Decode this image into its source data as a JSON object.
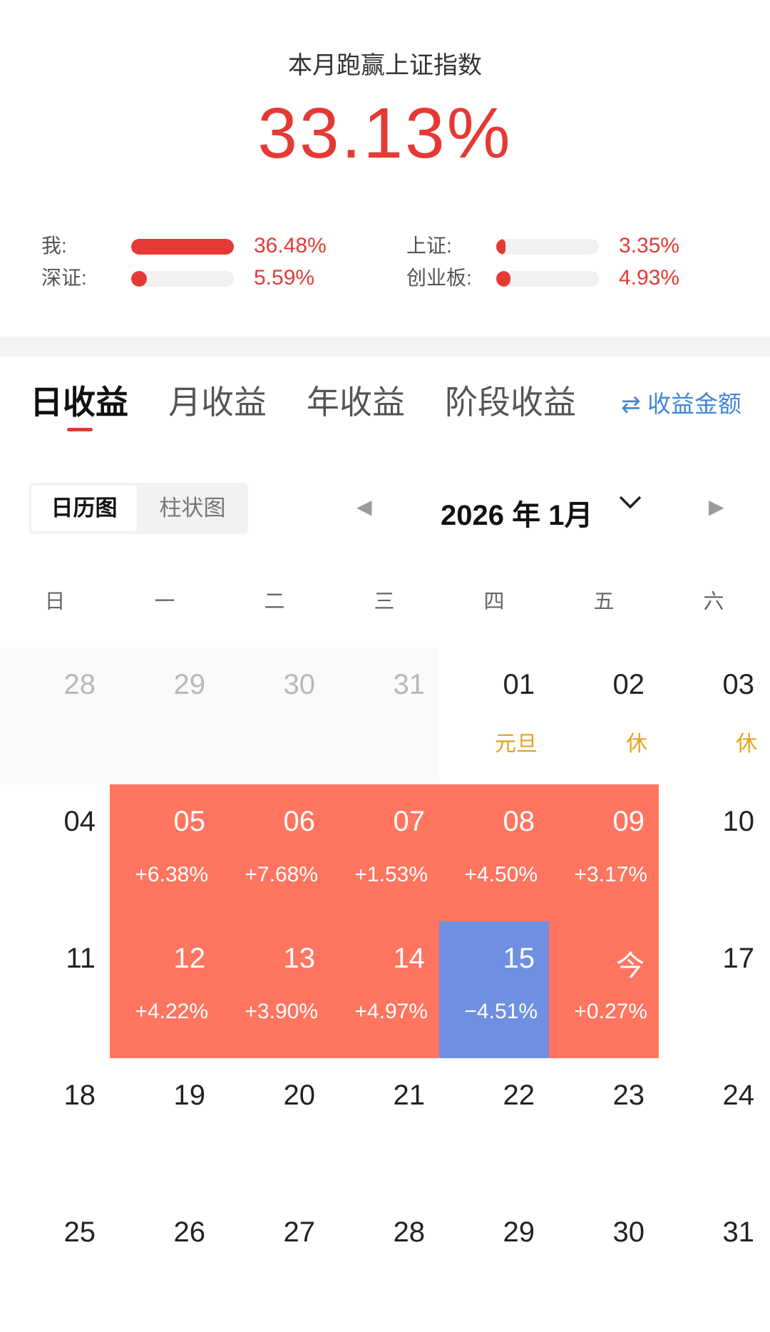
{
  "header": {
    "caption": "本月跑赢上证指数",
    "headline_value": "33.13%"
  },
  "comparison": [
    {
      "label": "我:",
      "value": "36.48%",
      "fill_percent": 100
    },
    {
      "label": "上证:",
      "value": "3.35%",
      "fill_percent": 9
    },
    {
      "label": "深证:",
      "value": "5.59%",
      "fill_percent": 15
    },
    {
      "label": "创业板:",
      "value": "4.93%",
      "fill_percent": 14
    }
  ],
  "tabs": {
    "daily": "日收益",
    "monthly": "月收益",
    "yearly": "年收益",
    "period": "阶段收益",
    "switch_label": "⇄ 收益金额"
  },
  "view_toggle": {
    "calendar": "日历图",
    "bar": "柱状图"
  },
  "month_nav": {
    "title": "2026 年 1月",
    "prev_icon": "◀",
    "next_icon": "▶"
  },
  "weekdays": [
    "日",
    "一",
    "二",
    "三",
    "四",
    "五",
    "六"
  ],
  "colors": {
    "gain": "#ff7560",
    "loss": "#6f90e0",
    "accent": "#e53935",
    "holiday": "#e3a51e"
  },
  "calendar": [
    [
      {
        "d": "28",
        "type": "prev"
      },
      {
        "d": "29",
        "type": "prev"
      },
      {
        "d": "30",
        "type": "prev"
      },
      {
        "d": "31",
        "type": "prev"
      },
      {
        "d": "01",
        "type": "holiday",
        "sub": "元旦"
      },
      {
        "d": "02",
        "type": "holiday",
        "sub": "休"
      },
      {
        "d": "03",
        "type": "holiday",
        "sub": "休"
      }
    ],
    [
      {
        "d": "04",
        "type": "normal"
      },
      {
        "d": "05",
        "type": "gain",
        "sub": "+6.38%"
      },
      {
        "d": "06",
        "type": "gain",
        "sub": "+7.68%"
      },
      {
        "d": "07",
        "type": "gain",
        "sub": "+1.53%"
      },
      {
        "d": "08",
        "type": "gain",
        "sub": "+4.50%"
      },
      {
        "d": "09",
        "type": "gain",
        "sub": "+3.17%"
      },
      {
        "d": "10",
        "type": "normal"
      }
    ],
    [
      {
        "d": "11",
        "type": "normal"
      },
      {
        "d": "12",
        "type": "gain",
        "sub": "+4.22%"
      },
      {
        "d": "13",
        "type": "gain",
        "sub": "+3.90%"
      },
      {
        "d": "14",
        "type": "gain",
        "sub": "+4.97%"
      },
      {
        "d": "15",
        "type": "loss",
        "sub": "−4.51%"
      },
      {
        "d": "今",
        "type": "gain",
        "sub": "+0.27%"
      },
      {
        "d": "17",
        "type": "normal"
      }
    ],
    [
      {
        "d": "18",
        "type": "normal"
      },
      {
        "d": "19",
        "type": "normal"
      },
      {
        "d": "20",
        "type": "normal"
      },
      {
        "d": "21",
        "type": "normal"
      },
      {
        "d": "22",
        "type": "normal"
      },
      {
        "d": "23",
        "type": "normal"
      },
      {
        "d": "24",
        "type": "normal"
      }
    ],
    [
      {
        "d": "25",
        "type": "normal"
      },
      {
        "d": "26",
        "type": "normal"
      },
      {
        "d": "27",
        "type": "normal"
      },
      {
        "d": "28",
        "type": "normal"
      },
      {
        "d": "29",
        "type": "normal"
      },
      {
        "d": "30",
        "type": "normal"
      },
      {
        "d": "31",
        "type": "normal"
      }
    ]
  ]
}
